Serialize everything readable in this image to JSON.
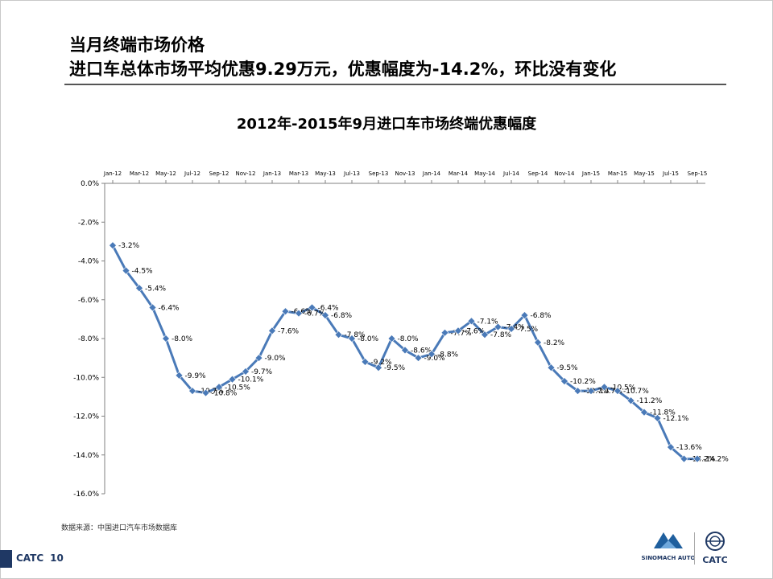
{
  "heading": {
    "line1": "当月终端市场价格",
    "line2": "进口车总体市场平均优惠9.29万元，优惠幅度为-14.2%，环比没有变化"
  },
  "chart_title": "2012年-2015年9月进口车市场终端优惠幅度",
  "source": "数据来源：中国进口汽车市场数据库",
  "footer": {
    "brand": "CATC",
    "page": "10"
  },
  "logos": {
    "left_name": "SINOMACH AUTO",
    "right_name": "CATC"
  },
  "colors": {
    "line": "#4a7ab8",
    "marker": "#4a7ab8",
    "axis": "#808080",
    "heading_rule": "#555555",
    "footer": "#1f3864"
  },
  "chart_data": {
    "type": "line",
    "title": "2012年-2015年9月进口车市场终端优惠幅度",
    "xlabel": "",
    "ylabel": "",
    "ylim": [
      -16,
      0
    ],
    "y_ticks": [
      "0.0%",
      "-2.0%",
      "-4.0%",
      "-6.0%",
      "-8.0%",
      "-10.0%",
      "-12.0%",
      "-14.0%",
      "-16.0%"
    ],
    "x_axis_position": "top",
    "x_tick_labels": [
      "Jan-12",
      "Mar-12",
      "May-12",
      "Jul-12",
      "Sep-12",
      "Nov-12",
      "Jan-13",
      "Mar-13",
      "May-13",
      "Jul-13",
      "Sep-13",
      "Nov-13",
      "Jan-14",
      "Mar-14",
      "May-14",
      "Jul-14",
      "Sep-14",
      "Nov-14",
      "Jan-15",
      "Mar-15",
      "May-15",
      "Jul-15",
      "Sep-15"
    ],
    "grid": false,
    "legend": "none",
    "series": [
      {
        "values": [
          -3.2,
          -4.5,
          -5.4,
          -6.4,
          -8.0,
          -9.9,
          -10.7,
          -10.8,
          -10.5,
          -10.1,
          -9.7,
          -9.0,
          -7.6,
          -6.6,
          -6.7,
          -6.4,
          -6.8,
          -7.8,
          -8.0,
          -9.2,
          -9.5,
          -8.0,
          -8.6,
          -9.0,
          -8.8,
          -7.7,
          -7.6,
          -7.1,
          -7.8,
          -7.4,
          -7.5,
          -6.8,
          -8.2,
          -9.5,
          -10.2,
          -10.7,
          -10.7,
          -10.5,
          -10.7,
          -11.2,
          -11.8,
          -12.1,
          -13.6,
          -14.2,
          -14.2
        ],
        "labels": [
          "-3.2%",
          "-4.5%",
          "-5.4%",
          "-6.4%",
          "-8.0%",
          "-9.9%",
          "-10.7%",
          "-10.8%",
          "-10.5%",
          "-10.1%",
          "-9.7%",
          "-9.0%",
          "-7.6%",
          "-6.6%",
          "-6.7%",
          "-6.4%",
          "-6.8%",
          "-7.8%",
          "-8.0%",
          "-9.2%",
          "-9.5%",
          "-8.0%",
          "-8.6%",
          "-9.0%",
          "-8.8%",
          "-7.7%",
          "-7.6%",
          "-7.1%",
          "-7.8%",
          "-7.4%",
          "-7.5%",
          "-6.8%",
          "-8.2%",
          "-9.5%",
          "-10.2%",
          "-10.7%",
          "-10.7%",
          "-10.5%",
          "-10.7%",
          "-11.2%",
          "-11.8%",
          "-12.1%",
          "-13.6%",
          "-14.2%",
          "-14.2%"
        ]
      }
    ]
  }
}
